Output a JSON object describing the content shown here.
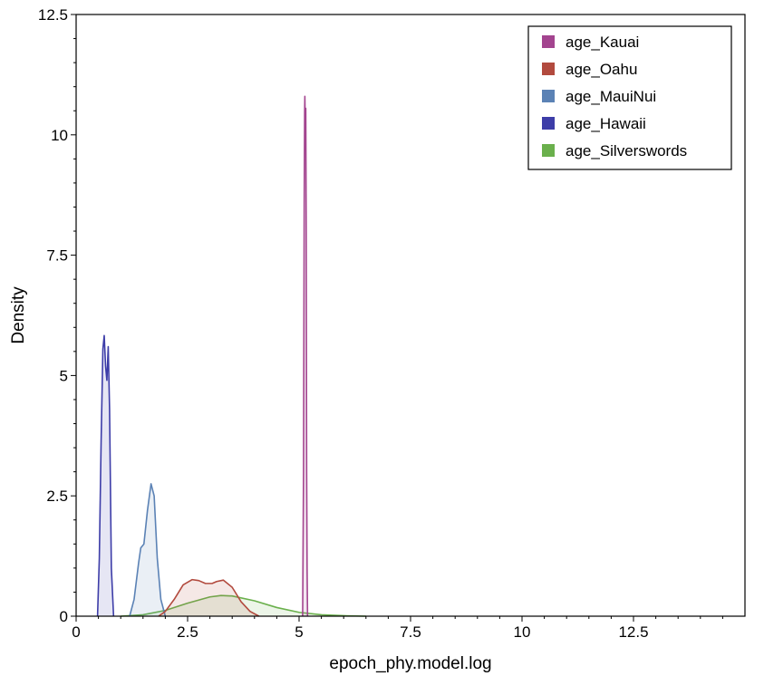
{
  "chart_data": {
    "type": "area",
    "title": "",
    "xlabel": "epoch_phy.model.log",
    "ylabel": "Density",
    "xlim": [
      0,
      15
    ],
    "ylim": [
      0,
      12.5
    ],
    "x_ticks": [
      0,
      2.5,
      5,
      7.5,
      10,
      12.5
    ],
    "x_tick_labels": [
      "0",
      "2.5",
      "5",
      "7.5",
      "10",
      "12.5"
    ],
    "y_ticks": [
      0,
      2.5,
      5,
      7.5,
      10,
      12.5
    ],
    "y_tick_labels": [
      "0",
      "2.5",
      "5",
      "7.5",
      "10",
      "12.5"
    ],
    "grid": false,
    "legend_position": "top-right",
    "series": [
      {
        "name": "age_Kauai",
        "color": "#a3448f",
        "points": [
          [
            5.08,
            0
          ],
          [
            5.1,
            3.0
          ],
          [
            5.115,
            8.6
          ],
          [
            5.125,
            10.5
          ],
          [
            5.13,
            10.8
          ],
          [
            5.14,
            10.0
          ],
          [
            5.15,
            10.55
          ],
          [
            5.16,
            8.0
          ],
          [
            5.17,
            3.0
          ],
          [
            5.18,
            1.0
          ],
          [
            5.19,
            0
          ]
        ]
      },
      {
        "name": "age_Oahu",
        "color": "#b24a3e",
        "points": [
          [
            1.85,
            0
          ],
          [
            2.0,
            0.1
          ],
          [
            2.2,
            0.35
          ],
          [
            2.4,
            0.65
          ],
          [
            2.6,
            0.76
          ],
          [
            2.75,
            0.74
          ],
          [
            2.9,
            0.68
          ],
          [
            3.05,
            0.68
          ],
          [
            3.15,
            0.72
          ],
          [
            3.3,
            0.75
          ],
          [
            3.5,
            0.6
          ],
          [
            3.7,
            0.3
          ],
          [
            3.9,
            0.1
          ],
          [
            4.1,
            0
          ]
        ]
      },
      {
        "name": "age_MauiNui",
        "color": "#5b82b5",
        "points": [
          [
            1.2,
            0
          ],
          [
            1.3,
            0.35
          ],
          [
            1.4,
            1.1
          ],
          [
            1.45,
            1.42
          ],
          [
            1.52,
            1.5
          ],
          [
            1.6,
            2.2
          ],
          [
            1.68,
            2.75
          ],
          [
            1.75,
            2.5
          ],
          [
            1.82,
            1.2
          ],
          [
            1.9,
            0.35
          ],
          [
            2.0,
            0
          ]
        ]
      },
      {
        "name": "age_Hawaii",
        "color": "#3d3da8",
        "points": [
          [
            0.48,
            0
          ],
          [
            0.52,
            1.2
          ],
          [
            0.56,
            3.6
          ],
          [
            0.6,
            5.55
          ],
          [
            0.63,
            5.83
          ],
          [
            0.66,
            5.2
          ],
          [
            0.69,
            4.9
          ],
          [
            0.72,
            5.6
          ],
          [
            0.75,
            4.3
          ],
          [
            0.79,
            1.0
          ],
          [
            0.84,
            0
          ]
        ]
      },
      {
        "name": "age_Silverswords",
        "color": "#6ab04c",
        "points": [
          [
            1.0,
            0
          ],
          [
            1.5,
            0.03
          ],
          [
            2.0,
            0.12
          ],
          [
            2.5,
            0.27
          ],
          [
            3.0,
            0.4
          ],
          [
            3.25,
            0.43
          ],
          [
            3.5,
            0.42
          ],
          [
            4.0,
            0.32
          ],
          [
            4.5,
            0.18
          ],
          [
            5.0,
            0.08
          ],
          [
            5.5,
            0.03
          ],
          [
            6.0,
            0.01
          ],
          [
            6.5,
            0
          ]
        ]
      }
    ]
  }
}
